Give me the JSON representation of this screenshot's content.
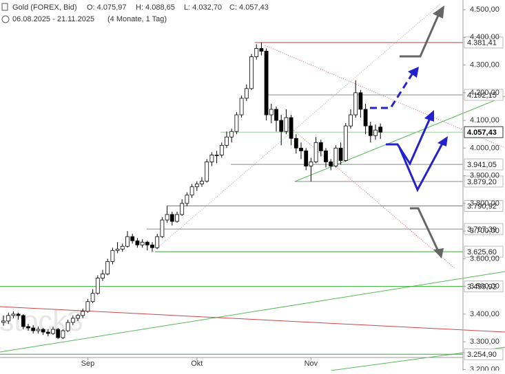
{
  "chart_data": {
    "type": "candlestick",
    "title": "Gold (FOREX, Bid)",
    "ohlc_text": [
      "O: 4.075,97",
      "H: 4.088,65",
      "L: 4.032,70",
      "C: 4.057,43"
    ],
    "date_range": "06.08.2025 - 21.11.2025",
    "period": "(4 Monate, 1 Tag)",
    "watermark": "stock3",
    "categories": [
      null,
      null,
      null,
      null,
      null,
      null,
      null,
      null,
      null,
      null,
      null,
      null,
      null,
      null,
      null,
      null,
      null,
      "Sep",
      null,
      null,
      null,
      null,
      null,
      null,
      null,
      null,
      null,
      null,
      null,
      null,
      null,
      null,
      null,
      null,
      null,
      null,
      null,
      null,
      null,
      "Okt",
      null,
      null,
      null,
      null,
      null,
      null,
      null,
      null,
      null,
      null,
      null,
      null,
      null,
      null,
      null,
      null,
      null,
      null,
      null,
      null,
      null,
      null,
      "Nov",
      null,
      null,
      null,
      null,
      null,
      null,
      null,
      null,
      null,
      null,
      null,
      null,
      null,
      null
    ],
    "candles": [
      [
        3370,
        3395,
        3358,
        3375
      ],
      [
        3375,
        3405,
        3365,
        3395
      ],
      [
        3395,
        3410,
        3385,
        3400
      ],
      [
        3400,
        3405,
        3380,
        3395
      ],
      [
        3395,
        3400,
        3345,
        3355
      ],
      [
        3355,
        3365,
        3340,
        3350
      ],
      [
        3350,
        3360,
        3330,
        3340
      ],
      [
        3340,
        3355,
        3330,
        3345
      ],
      [
        3345,
        3350,
        3325,
        3335
      ],
      [
        3335,
        3345,
        3320,
        3330
      ],
      [
        3330,
        3355,
        3325,
        3345
      ],
      [
        3345,
        3350,
        3310,
        3315
      ],
      [
        3315,
        3345,
        3310,
        3340
      ],
      [
        3340,
        3380,
        3335,
        3370
      ],
      [
        3370,
        3395,
        3360,
        3385
      ],
      [
        3385,
        3400,
        3375,
        3395
      ],
      [
        3395,
        3420,
        3385,
        3410
      ],
      [
        3410,
        3455,
        3405,
        3445
      ],
      [
        3445,
        3490,
        3440,
        3475
      ],
      [
        3475,
        3540,
        3470,
        3530
      ],
      [
        3530,
        3560,
        3520,
        3545
      ],
      [
        3545,
        3600,
        3540,
        3590
      ],
      [
        3590,
        3640,
        3580,
        3630
      ],
      [
        3630,
        3660,
        3620,
        3635
      ],
      [
        3635,
        3655,
        3625,
        3645
      ],
      [
        3645,
        3700,
        3640,
        3680
      ],
      [
        3680,
        3690,
        3655,
        3665
      ],
      [
        3665,
        3675,
        3640,
        3650
      ],
      [
        3650,
        3670,
        3640,
        3660
      ],
      [
        3660,
        3665,
        3630,
        3650
      ],
      [
        3650,
        3660,
        3625,
        3640
      ],
      [
        3640,
        3690,
        3635,
        3680
      ],
      [
        3680,
        3750,
        3675,
        3740
      ],
      [
        3740,
        3790,
        3730,
        3760
      ],
      [
        3760,
        3770,
        3720,
        3735
      ],
      [
        3735,
        3770,
        3730,
        3760
      ],
      [
        3760,
        3815,
        3755,
        3800
      ],
      [
        3800,
        3840,
        3790,
        3830
      ],
      [
        3830,
        3870,
        3820,
        3860
      ],
      [
        3860,
        3880,
        3845,
        3870
      ],
      [
        3870,
        3895,
        3860,
        3880
      ],
      [
        3880,
        3960,
        3875,
        3950
      ],
      [
        3950,
        3985,
        3935,
        3975
      ],
      [
        3975,
        3990,
        3945,
        3975
      ],
      [
        3975,
        4020,
        3965,
        4010
      ],
      [
        4010,
        4060,
        4000,
        4040
      ],
      [
        4040,
        4070,
        4020,
        4060
      ],
      [
        4060,
        4130,
        4050,
        4120
      ],
      [
        4120,
        4190,
        4110,
        4180
      ],
      [
        4180,
        4230,
        4170,
        4215
      ],
      [
        4215,
        4340,
        4210,
        4330
      ],
      [
        4330,
        4375,
        4320,
        4360
      ],
      [
        4360,
        4381.41,
        4335,
        4350
      ],
      [
        4350,
        4360,
        4100,
        4120
      ],
      [
        4120,
        4160,
        4090,
        4140
      ],
      [
        4140,
        4150,
        4060,
        4100
      ],
      [
        4100,
        4120,
        4010,
        4060
      ],
      [
        4060,
        4140,
        4050,
        4110
      ],
      [
        4110,
        4120,
        4010,
        4035
      ],
      [
        4035,
        4050,
        3980,
        4000
      ],
      [
        4000,
        4020,
        3960,
        3990
      ],
      [
        3990,
        4000,
        3920,
        3935
      ],
      [
        3935,
        3965,
        3879.2,
        3950
      ],
      [
        3950,
        4040,
        3945,
        4020
      ],
      [
        4020,
        4030,
        3970,
        3990
      ],
      [
        3990,
        4000,
        3930,
        3950
      ],
      [
        3950,
        3960,
        3920,
        3935
      ],
      [
        3935,
        4010,
        3930,
        4000
      ],
      [
        4000,
        4020,
        3940,
        3955
      ],
      [
        3955,
        4090,
        3950,
        4080
      ],
      [
        4080,
        4140,
        4070,
        4120
      ],
      [
        4120,
        4245,
        4110,
        4200
      ],
      [
        4200,
        4210,
        4110,
        4140
      ],
      [
        4140,
        4160,
        4050,
        4080
      ],
      [
        4080,
        4095,
        4020,
        4045
      ],
      [
        4045,
        4085,
        4030,
        4065
      ],
      [
        4075.97,
        4088.65,
        4032.7,
        4057.43
      ]
    ],
    "ylim": [
      3196,
      4535
    ],
    "yticks": [
      {
        "value": 3200,
        "label": "3.200,00"
      },
      {
        "value": 3300,
        "label": "3.300,00"
      },
      {
        "value": 3400,
        "label": "3.400,00"
      },
      {
        "value": 3500,
        "label": "3.500,00"
      },
      {
        "value": 3600,
        "label": "3.600,00"
      },
      {
        "value": 3700,
        "label": "3.700,00"
      },
      {
        "value": 3800,
        "label": "3.800,00"
      },
      {
        "value": 3900,
        "label": "3.900,00"
      },
      {
        "value": 4000,
        "label": "4.000,00"
      },
      {
        "value": 4100,
        "label": "4.100,00"
      },
      {
        "value": 4200,
        "label": "4.200,00"
      },
      {
        "value": 4300,
        "label": "4.300,00"
      },
      {
        "value": 4400,
        "label": "4.400,00"
      },
      {
        "value": 4500,
        "label": "4.500,00"
      }
    ],
    "levels": [
      {
        "value": 4381.41,
        "label": "4.381,41",
        "color": "#d33"
      },
      {
        "value": 4192.15,
        "label": "4.192,15",
        "color": "#888"
      },
      {
        "value": 4057.43,
        "label": "4.057,43",
        "color": "#9c9"
      },
      {
        "value": 3941.05,
        "label": "3.941,05",
        "color": "#888"
      },
      {
        "value": 3879.2,
        "label": "3.879,20",
        "color": "#888"
      },
      {
        "value": 3790.92,
        "label": "3.790,92",
        "color": "#3a3"
      },
      {
        "value": 3707.39,
        "label": "3.707,39",
        "color": "#888"
      },
      {
        "value": 3625.6,
        "label": "3.625,60",
        "color": "#3a3"
      },
      {
        "value": 3499.92,
        "label": "3.499,92",
        "color": "#3a3"
      },
      {
        "value": 3254.9,
        "label": "3.254,90",
        "color": "#3a3"
      }
    ]
  }
}
